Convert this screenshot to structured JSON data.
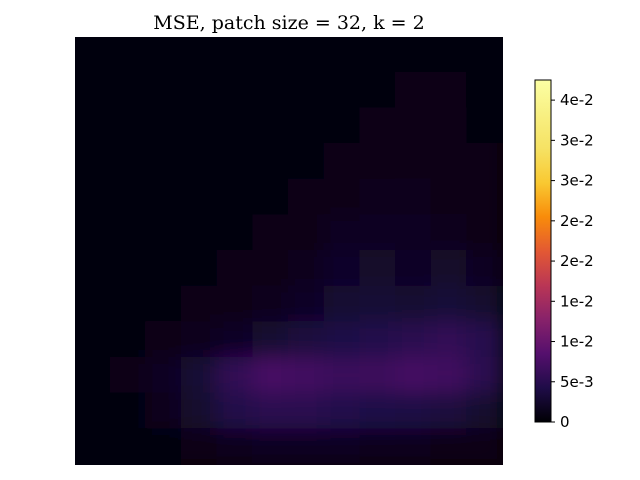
{
  "chart_data": {
    "type": "heatmap",
    "title": "MSE, patch size = 32, k = 2",
    "xlabel": "",
    "ylabel": "",
    "axes_visible": false,
    "grid": false,
    "colormap": "inferno",
    "colorbar": {
      "placement": "right",
      "range": [
        0,
        0.0425
      ],
      "ticks": [
        {
          "value": 0.0,
          "label": "0"
        },
        {
          "value": 0.005,
          "label": "5e-3"
        },
        {
          "value": 0.01,
          "label": "1e-2"
        },
        {
          "value": 0.015,
          "label": "1e-2"
        },
        {
          "value": 0.02,
          "label": "2e-2"
        },
        {
          "value": 0.025,
          "label": "2e-2"
        },
        {
          "value": 0.03,
          "label": "3e-2"
        },
        {
          "value": 0.035,
          "label": "3e-2"
        },
        {
          "value": 0.04,
          "label": "4e-2"
        }
      ]
    },
    "grid_size": [
      12,
      12
    ],
    "values": [
      [
        0.0003,
        0.0003,
        0.0003,
        0.0003,
        0.0004,
        0.0004,
        0.0004,
        0.0005,
        0.0006,
        0.0007,
        0.0007,
        0.0006
      ],
      [
        0.0003,
        0.0003,
        0.0003,
        0.0004,
        0.0004,
        0.0005,
        0.0005,
        0.0006,
        0.0008,
        0.001,
        0.0009,
        0.0007
      ],
      [
        0.0003,
        0.0003,
        0.0004,
        0.0004,
        0.0005,
        0.0006,
        0.0007,
        0.0008,
        0.001,
        0.0012,
        0.0011,
        0.0008
      ],
      [
        0.0003,
        0.0003,
        0.0004,
        0.0005,
        0.0006,
        0.0007,
        0.0008,
        0.001,
        0.0012,
        0.0013,
        0.0012,
        0.0009
      ],
      [
        0.0003,
        0.0004,
        0.0004,
        0.0005,
        0.0006,
        0.0008,
        0.001,
        0.0013,
        0.0015,
        0.0015,
        0.0013,
        0.001
      ],
      [
        0.0003,
        0.0004,
        0.0005,
        0.0006,
        0.0008,
        0.001,
        0.0013,
        0.0018,
        0.0019,
        0.0018,
        0.0016,
        0.0012
      ],
      [
        0.0004,
        0.0005,
        0.0006,
        0.0008,
        0.001,
        0.0013,
        0.0017,
        0.0023,
        0.0024,
        0.0022,
        0.0024,
        0.0018
      ],
      [
        0.0005,
        0.0006,
        0.0008,
        0.001,
        0.0013,
        0.0017,
        0.0022,
        0.0028,
        0.003,
        0.0028,
        0.0032,
        0.0026
      ],
      [
        0.0006,
        0.0008,
        0.0012,
        0.0016,
        0.0022,
        0.0028,
        0.0036,
        0.0042,
        0.0046,
        0.0052,
        0.0056,
        0.0048
      ],
      [
        0.0007,
        0.001,
        0.0018,
        0.003,
        0.0058,
        0.0074,
        0.007,
        0.0064,
        0.0066,
        0.0072,
        0.0068,
        0.005
      ],
      [
        0.0005,
        0.0008,
        0.0014,
        0.0026,
        0.0044,
        0.0052,
        0.005,
        0.0046,
        0.0042,
        0.004,
        0.0036,
        0.0026
      ],
      [
        0.0003,
        0.0004,
        0.0006,
        0.001,
        0.0016,
        0.002,
        0.002,
        0.0018,
        0.0016,
        0.0014,
        0.0012,
        0.0009
      ]
    ]
  }
}
